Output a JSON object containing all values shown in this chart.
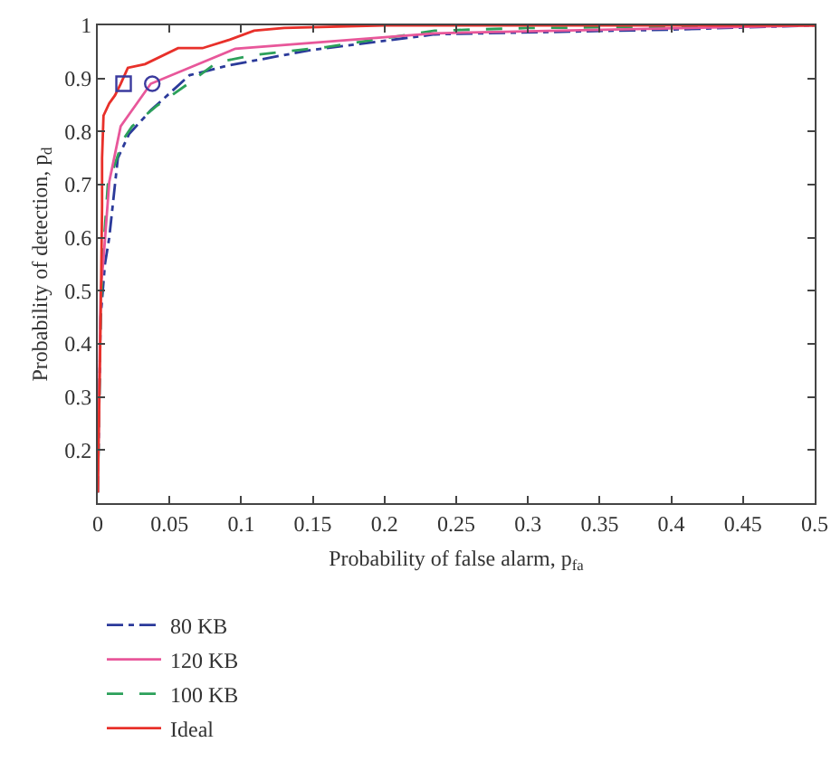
{
  "chart_data": {
    "type": "line",
    "xlabel": "Probability of false alarm, p$_{fa}$",
    "ylabel": "Probability of detection, p$_{d}$",
    "xlim": [
      0,
      0.5
    ],
    "xticks": [
      0,
      0.05,
      0.1,
      0.15,
      0.2,
      0.25,
      0.3,
      0.35,
      0.4,
      0.45,
      0.5
    ],
    "ylim": [
      0.1,
      1
    ],
    "yticks": [
      0.2,
      0.3,
      0.4,
      0.5,
      0.6,
      0.7,
      0.8,
      0.9,
      1
    ],
    "grid": false,
    "legend": "bottom",
    "marker": "none",
    "series": [
      {
        "name": "80 KB",
        "color": "#2b3a9a",
        "line_style": "dashdot",
        "x": [
          0,
          0.002,
          0.005,
          0.008,
          0.014,
          0.022,
          0.037,
          0.064,
          0.092,
          0.15,
          0.235,
          0.269,
          0.4,
          0.5
        ],
        "values": [
          0.12,
          0.45,
          0.55,
          0.6,
          0.75,
          0.796,
          0.84,
          0.906,
          0.925,
          0.954,
          0.983,
          0.985,
          0.992,
          1
        ]
      },
      {
        "name": "100 KB",
        "color": "#2ca05a",
        "line_style": "dashed",
        "x": [
          0,
          0.002,
          0.004,
          0.007,
          0.018,
          0.024,
          0.041,
          0.062,
          0.083,
          0.109,
          0.159,
          0.235,
          0.3,
          0.5
        ],
        "values": [
          0.12,
          0.45,
          0.58,
          0.7,
          0.786,
          0.81,
          0.848,
          0.888,
          0.93,
          0.944,
          0.959,
          0.99,
          0.995,
          1
        ]
      },
      {
        "name": "120 KB",
        "color": "#e8579a",
        "line_style": "solid",
        "x": [
          0,
          0.002,
          0.004,
          0.008,
          0.016,
          0.037,
          0.096,
          0.235,
          0.5
        ],
        "values": [
          0.12,
          0.5,
          0.56,
          0.705,
          0.81,
          0.89,
          0.956,
          0.985,
          1
        ]
      },
      {
        "name": "Ideal",
        "color": "#e8302a",
        "line_style": "solid",
        "x": [
          0,
          0.002,
          0.003,
          0.003,
          0.004,
          0.008,
          0.012,
          0.016,
          0.021,
          0.033,
          0.056,
          0.073,
          0.092,
          0.109,
          0.13,
          0.2,
          0.5
        ],
        "values": [
          0.12,
          0.44,
          0.66,
          0.75,
          0.83,
          0.853,
          0.868,
          0.89,
          0.92,
          0.927,
          0.957,
          0.957,
          0.973,
          0.99,
          0.995,
          1,
          1
        ]
      },
      {
        "type": "scatter",
        "marker": "square",
        "color": "#3b3b9e",
        "x": [
          0.018
        ],
        "values": [
          0.89
        ]
      },
      {
        "type": "scatter",
        "marker": "circle",
        "color": "#3b3b9e",
        "x": [
          0.038
        ],
        "values": [
          0.89
        ]
      }
    ]
  }
}
